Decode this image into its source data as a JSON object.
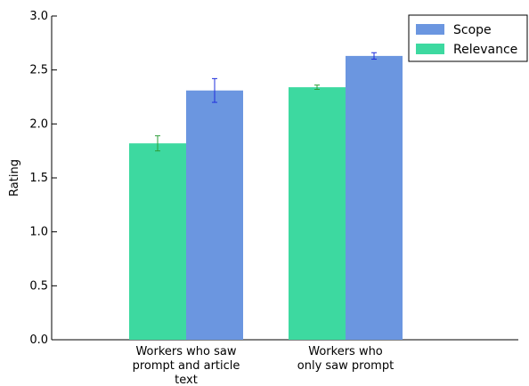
{
  "chart_data": {
    "type": "bar",
    "categories": [
      [
        "Workers who saw",
        "prompt and article",
        "text"
      ],
      [
        "Workers who",
        "only saw prompt"
      ]
    ],
    "series": [
      {
        "name": "Relevance",
        "color": "#3dd9a0",
        "error_color": "#2e9e3a",
        "values": [
          1.82,
          2.34
        ],
        "errors": [
          0.07,
          0.02
        ]
      },
      {
        "name": "Scope",
        "color": "#6b96e0",
        "error_color": "#1f2fdc",
        "values": [
          2.31,
          2.63
        ],
        "errors": [
          0.11,
          0.03
        ]
      }
    ],
    "legend_order": [
      "Scope",
      "Relevance"
    ],
    "ylabel": "Rating",
    "xlabel": "",
    "title": "",
    "ylim": [
      0,
      3.0
    ],
    "yticks": [
      "0.0",
      "0.5",
      "1.0",
      "1.5",
      "2.0",
      "2.5",
      "3.0"
    ],
    "grid": false,
    "legend_position": "top-right"
  }
}
